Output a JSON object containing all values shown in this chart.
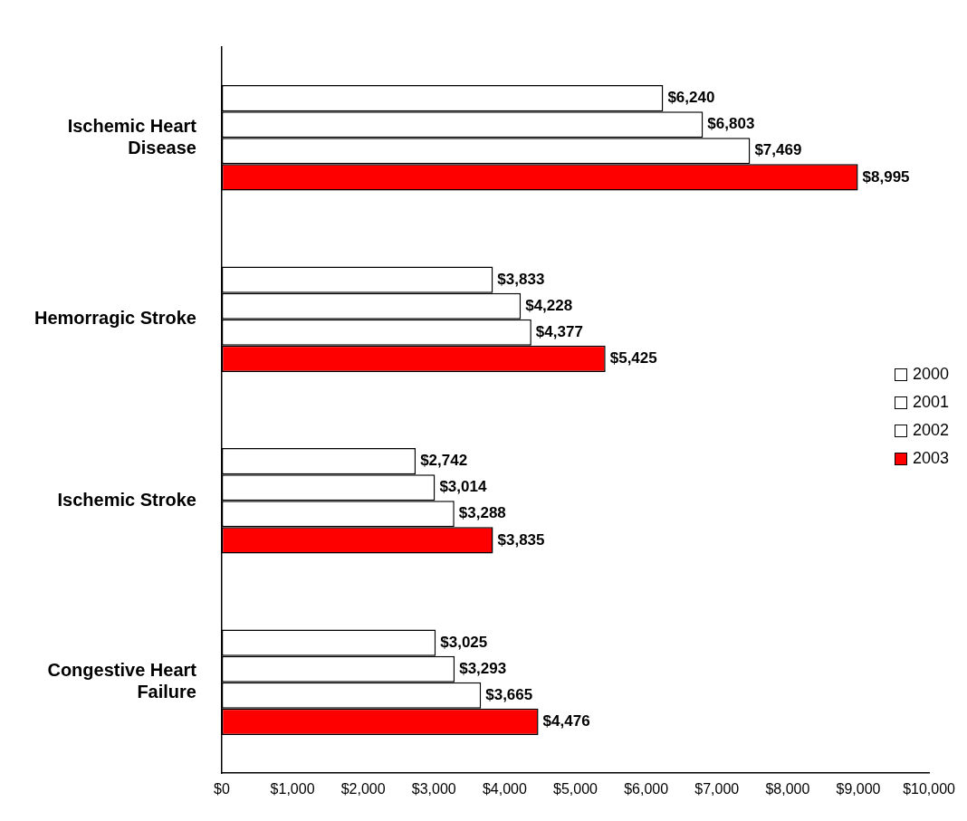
{
  "chart_data": {
    "type": "bar",
    "orientation": "horizontal",
    "categories": [
      "Ischemic Heart Disease",
      "Hemorragic Stroke",
      "Ischemic Stroke",
      "Congestive Heart Failure"
    ],
    "series": [
      {
        "name": "2000",
        "color": "#ffffff",
        "values": [
          6240,
          3833,
          2742,
          3025
        ],
        "value_labels": [
          "$6,240",
          "$3,833",
          "$2,742",
          "$3,025"
        ]
      },
      {
        "name": "2001",
        "color": "#ffffff",
        "values": [
          6803,
          4228,
          3014,
          3293
        ],
        "value_labels": [
          "$6,803",
          "$4,228",
          "$3,014",
          "$3,293"
        ]
      },
      {
        "name": "2002",
        "color": "#ffffff",
        "values": [
          7469,
          4377,
          3288,
          3665
        ],
        "value_labels": [
          "$7,469",
          "$4,377",
          "$3,288",
          "$3,665"
        ]
      },
      {
        "name": "2003",
        "color": "#ff0000",
        "values": [
          8995,
          5425,
          3835,
          4476
        ],
        "value_labels": [
          "$8,995",
          "$5,425",
          "$3,835",
          "$4,476"
        ]
      }
    ],
    "xlim": [
      0,
      10000
    ],
    "xticks": [
      {
        "value": 0,
        "label": "$0"
      },
      {
        "value": 1000,
        "label": "$1,000"
      },
      {
        "value": 2000,
        "label": "$2,000"
      },
      {
        "value": 3000,
        "label": "$3,000"
      },
      {
        "value": 4000,
        "label": "$4,000"
      },
      {
        "value": 5000,
        "label": "$5,000"
      },
      {
        "value": 6000,
        "label": "$6,000"
      },
      {
        "value": 7000,
        "label": "$7,000"
      },
      {
        "value": 8000,
        "label": "$8,000"
      },
      {
        "value": 9000,
        "label": "$9,000"
      },
      {
        "value": 10000,
        "label": "$10,000"
      }
    ],
    "grid": false,
    "legend": "right"
  }
}
